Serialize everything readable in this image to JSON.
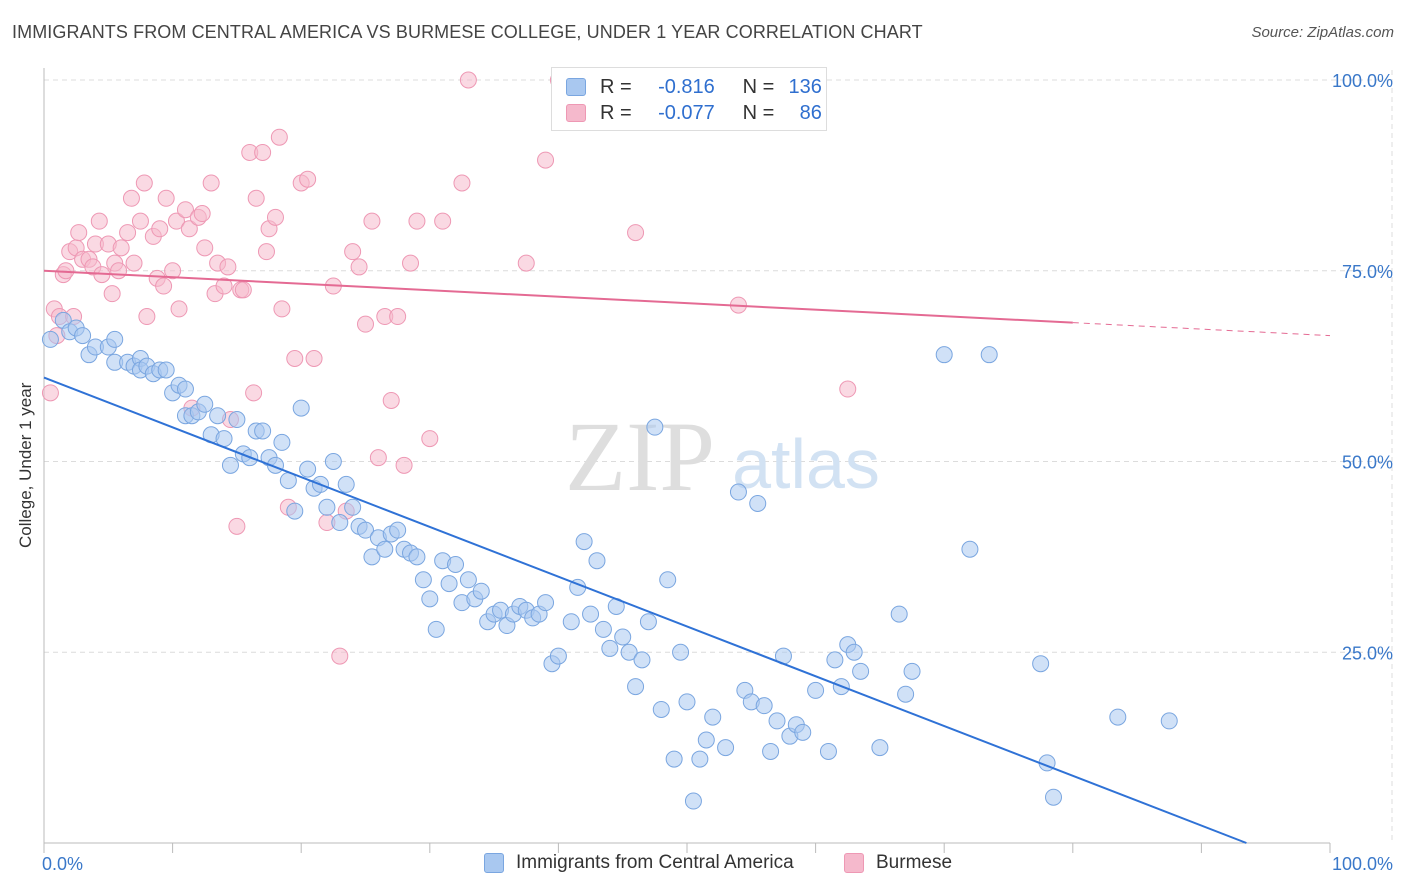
{
  "title": "IMMIGRANTS FROM CENTRAL AMERICA VS BURMESE COLLEGE, UNDER 1 YEAR CORRELATION CHART",
  "source": "Source: ZipAtlas.com",
  "watermark": {
    "zip": "ZIP",
    "atlas": "atlas"
  },
  "legend": {
    "r_label": "R =",
    "n_label": "N =",
    "series": [
      {
        "r": "-0.816",
        "n": "136"
      },
      {
        "r": "-0.077",
        "n": "86"
      }
    ]
  },
  "bottom_legend": [
    "Immigrants from Central America",
    "Burmese"
  ],
  "colors": {
    "blue_fill": "#a9c8f0",
    "blue_stroke": "#7aa6e0",
    "blue_line": "#2f72d6",
    "pink_fill": "#f5b9cc",
    "pink_stroke": "#ee98b4",
    "pink_line": "#e46a93",
    "grid": "#dcdcdc",
    "tick_label": "#3a78c9"
  },
  "chart_data": {
    "type": "scatter",
    "title": "IMMIGRANTS FROM CENTRAL AMERICA VS BURMESE COLLEGE, UNDER 1 YEAR CORRELATION CHART",
    "xlabel": "",
    "ylabel": "College, Under 1 year",
    "xlim": [
      0,
      100
    ],
    "ylim": [
      0,
      100
    ],
    "x_tick_labels": [
      "0.0%",
      "100.0%"
    ],
    "y_tick_labels": [
      "25.0%",
      "50.0%",
      "75.0%",
      "100.0%"
    ],
    "y_ticks": [
      25,
      50,
      75,
      100
    ],
    "grid": true,
    "legend_position": "top-center",
    "series": [
      {
        "name": "Immigrants from Central America",
        "r": -0.816,
        "n": 136,
        "trend": {
          "x": [
            0,
            93.5
          ],
          "y": [
            61.0,
            0
          ]
        },
        "points": [
          [
            0.5,
            66.0
          ],
          [
            1.5,
            68.5
          ],
          [
            2.0,
            67.0
          ],
          [
            2.5,
            67.5
          ],
          [
            3.0,
            66.5
          ],
          [
            3.5,
            64.0
          ],
          [
            4.0,
            65.0
          ],
          [
            5.0,
            65.0
          ],
          [
            5.5,
            66.0
          ],
          [
            5.5,
            63.0
          ],
          [
            6.5,
            63.0
          ],
          [
            7.0,
            62.5
          ],
          [
            7.5,
            63.5
          ],
          [
            7.5,
            62.0
          ],
          [
            8.0,
            62.5
          ],
          [
            8.5,
            61.5
          ],
          [
            9.0,
            62.0
          ],
          [
            9.5,
            62.0
          ],
          [
            10.0,
            59.0
          ],
          [
            10.5,
            60.0
          ],
          [
            11.0,
            59.5
          ],
          [
            11.0,
            56.0
          ],
          [
            11.5,
            56.0
          ],
          [
            12.0,
            56.5
          ],
          [
            12.5,
            57.5
          ],
          [
            13.0,
            53.5
          ],
          [
            13.5,
            56.0
          ],
          [
            14.0,
            53.0
          ],
          [
            14.5,
            49.5
          ],
          [
            15.0,
            55.5
          ],
          [
            15.5,
            51.0
          ],
          [
            16.0,
            50.5
          ],
          [
            16.5,
            54.0
          ],
          [
            17.0,
            54.0
          ],
          [
            17.5,
            50.5
          ],
          [
            18.0,
            49.5
          ],
          [
            18.5,
            52.5
          ],
          [
            19.0,
            47.5
          ],
          [
            19.5,
            43.5
          ],
          [
            20.0,
            57.0
          ],
          [
            20.5,
            49.0
          ],
          [
            21.0,
            46.5
          ],
          [
            21.5,
            47.0
          ],
          [
            22.0,
            44.0
          ],
          [
            22.5,
            50.0
          ],
          [
            23.0,
            42.0
          ],
          [
            23.5,
            47.0
          ],
          [
            24.0,
            44.0
          ],
          [
            24.5,
            41.5
          ],
          [
            25.0,
            41.0
          ],
          [
            25.5,
            37.5
          ],
          [
            26.0,
            40.0
          ],
          [
            26.5,
            38.5
          ],
          [
            27.0,
            40.5
          ],
          [
            27.5,
            41.0
          ],
          [
            28.0,
            38.5
          ],
          [
            28.5,
            38.0
          ],
          [
            29.0,
            37.5
          ],
          [
            29.5,
            34.5
          ],
          [
            30.0,
            32.0
          ],
          [
            30.5,
            28.0
          ],
          [
            31.0,
            37.0
          ],
          [
            31.5,
            34.0
          ],
          [
            32.0,
            36.5
          ],
          [
            32.5,
            31.5
          ],
          [
            33.0,
            34.5
          ],
          [
            33.5,
            32.0
          ],
          [
            34.0,
            33.0
          ],
          [
            34.5,
            29.0
          ],
          [
            35.0,
            30.0
          ],
          [
            35.5,
            30.5
          ],
          [
            36.0,
            28.5
          ],
          [
            36.5,
            30.0
          ],
          [
            37.0,
            31.0
          ],
          [
            37.5,
            30.5
          ],
          [
            38.0,
            29.5
          ],
          [
            38.5,
            30.0
          ],
          [
            39.0,
            31.5
          ],
          [
            39.5,
            23.5
          ],
          [
            40.0,
            24.5
          ],
          [
            41.0,
            29.0
          ],
          [
            41.5,
            33.5
          ],
          [
            42.0,
            39.5
          ],
          [
            42.5,
            30.0
          ],
          [
            43.0,
            37.0
          ],
          [
            43.5,
            28.0
          ],
          [
            44.0,
            25.5
          ],
          [
            44.5,
            31.0
          ],
          [
            45.0,
            27.0
          ],
          [
            45.5,
            25.0
          ],
          [
            46.0,
            20.5
          ],
          [
            46.5,
            24.0
          ],
          [
            47.0,
            29.0
          ],
          [
            47.5,
            54.5
          ],
          [
            48.0,
            17.5
          ],
          [
            48.5,
            34.5
          ],
          [
            49.0,
            11.0
          ],
          [
            49.5,
            25.0
          ],
          [
            50.0,
            18.5
          ],
          [
            50.5,
            5.5
          ],
          [
            51.0,
            11.0
          ],
          [
            51.5,
            13.5
          ],
          [
            52.0,
            16.5
          ],
          [
            53.0,
            12.5
          ],
          [
            54.0,
            46.0
          ],
          [
            54.5,
            20.0
          ],
          [
            55.0,
            18.5
          ],
          [
            55.5,
            44.5
          ],
          [
            56.0,
            18.0
          ],
          [
            56.5,
            12.0
          ],
          [
            57.0,
            16.0
          ],
          [
            57.5,
            24.5
          ],
          [
            58.0,
            14.0
          ],
          [
            58.5,
            15.5
          ],
          [
            59.0,
            14.5
          ],
          [
            60.0,
            20.0
          ],
          [
            61.0,
            12.0
          ],
          [
            61.5,
            24.0
          ],
          [
            62.0,
            20.5
          ],
          [
            62.5,
            26.0
          ],
          [
            63.0,
            25.0
          ],
          [
            63.5,
            22.5
          ],
          [
            65.0,
            12.5
          ],
          [
            66.5,
            30.0
          ],
          [
            67.0,
            19.5
          ],
          [
            67.5,
            22.5
          ],
          [
            70.0,
            64.0
          ],
          [
            72.0,
            38.5
          ],
          [
            73.5,
            64.0
          ],
          [
            77.5,
            23.5
          ],
          [
            78.0,
            10.5
          ],
          [
            78.5,
            6.0
          ],
          [
            83.5,
            16.5
          ],
          [
            87.5,
            16.0
          ]
        ]
      },
      {
        "name": "Burmese",
        "r": -0.077,
        "n": 86,
        "trend": {
          "x": [
            0,
            80.0,
            100
          ],
          "y": [
            75.0,
            68.2,
            66.5
          ],
          "solid_until_x": 80.0
        },
        "points": [
          [
            0.5,
            59.0
          ],
          [
            0.8,
            70.0
          ],
          [
            1.0,
            66.5
          ],
          [
            1.2,
            69.0
          ],
          [
            1.5,
            74.5
          ],
          [
            1.7,
            75.0
          ],
          [
            2.0,
            77.5
          ],
          [
            2.3,
            69.0
          ],
          [
            2.5,
            78.0
          ],
          [
            2.7,
            80.0
          ],
          [
            3.0,
            76.5
          ],
          [
            3.5,
            76.5
          ],
          [
            3.8,
            75.5
          ],
          [
            4.0,
            78.5
          ],
          [
            4.3,
            81.5
          ],
          [
            4.5,
            74.5
          ],
          [
            5.0,
            78.5
          ],
          [
            5.3,
            72.0
          ],
          [
            5.5,
            76.0
          ],
          [
            5.8,
            75.0
          ],
          [
            6.0,
            78.0
          ],
          [
            6.5,
            80.0
          ],
          [
            6.8,
            84.5
          ],
          [
            7.0,
            76.0
          ],
          [
            7.5,
            81.5
          ],
          [
            7.8,
            86.5
          ],
          [
            8.0,
            69.0
          ],
          [
            8.5,
            79.5
          ],
          [
            8.8,
            74.0
          ],
          [
            9.0,
            80.5
          ],
          [
            9.3,
            73.0
          ],
          [
            9.5,
            84.5
          ],
          [
            10.0,
            75.0
          ],
          [
            10.3,
            81.5
          ],
          [
            10.5,
            70.0
          ],
          [
            11.0,
            83.0
          ],
          [
            11.3,
            80.5
          ],
          [
            11.5,
            57.0
          ],
          [
            12.0,
            82.0
          ],
          [
            12.3,
            82.5
          ],
          [
            12.5,
            78.0
          ],
          [
            13.0,
            86.5
          ],
          [
            13.3,
            72.0
          ],
          [
            13.5,
            76.0
          ],
          [
            14.0,
            73.0
          ],
          [
            14.3,
            75.5
          ],
          [
            14.5,
            55.5
          ],
          [
            15.0,
            41.5
          ],
          [
            15.3,
            72.5
          ],
          [
            15.5,
            72.5
          ],
          [
            16.0,
            90.5
          ],
          [
            16.3,
            59.0
          ],
          [
            16.5,
            84.5
          ],
          [
            17.0,
            90.5
          ],
          [
            17.3,
            77.5
          ],
          [
            17.5,
            80.5
          ],
          [
            18.0,
            82.0
          ],
          [
            18.3,
            92.5
          ],
          [
            18.5,
            70.0
          ],
          [
            19.0,
            44.0
          ],
          [
            19.5,
            63.5
          ],
          [
            20.0,
            86.5
          ],
          [
            20.5,
            87.0
          ],
          [
            21.0,
            63.5
          ],
          [
            22.0,
            42.0
          ],
          [
            22.5,
            73.0
          ],
          [
            23.0,
            24.5
          ],
          [
            23.5,
            43.5
          ],
          [
            24.0,
            77.5
          ],
          [
            24.5,
            75.5
          ],
          [
            25.0,
            68.0
          ],
          [
            25.5,
            81.5
          ],
          [
            26.0,
            50.5
          ],
          [
            26.5,
            69.0
          ],
          [
            27.0,
            58.0
          ],
          [
            27.5,
            69.0
          ],
          [
            28.0,
            49.5
          ],
          [
            28.5,
            76.0
          ],
          [
            29.0,
            81.5
          ],
          [
            30.0,
            53.0
          ],
          [
            31.0,
            81.5
          ],
          [
            32.5,
            86.5
          ],
          [
            33.0,
            100.0
          ],
          [
            37.5,
            76.0
          ],
          [
            39.0,
            89.5
          ],
          [
            40.0,
            100.0
          ],
          [
            46.0,
            80.0
          ],
          [
            54.0,
            70.5
          ],
          [
            62.5,
            59.5
          ]
        ]
      }
    ]
  }
}
